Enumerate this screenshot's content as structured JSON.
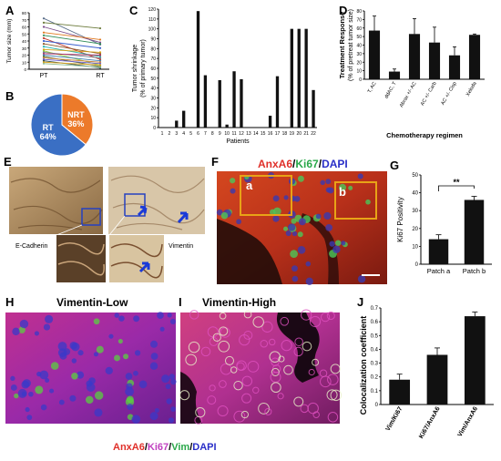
{
  "panel_labels": [
    "A",
    "B",
    "C",
    "D",
    "E",
    "F",
    "G",
    "H",
    "I",
    "J"
  ],
  "colors": {
    "pt": "#c0c0c0",
    "bar": "#111111",
    "pie_rt": "#3a6fc4",
    "pie_nrt": "#ec7a2a",
    "box": "#e8a317",
    "micro_red": "#c8302e",
    "micro_green": "#3cbf4a",
    "micro_blue": "#2a2fc8",
    "ihc_brown": "#a07a48"
  },
  "chart_data": [
    {
      "id": "A",
      "type": "line",
      "ylabel": "Tumor size (mm)",
      "categories": [
        "PT",
        "RT"
      ],
      "ylim": [
        0,
        80
      ],
      "yticks": [
        0,
        10,
        20,
        30,
        40,
        50,
        60,
        70,
        80
      ],
      "series": [
        {
          "values": [
            72,
            35
          ],
          "color": "#5a6e8a"
        },
        {
          "values": [
            66,
            58
          ],
          "color": "#6b7a3a"
        },
        {
          "values": [
            60,
            38
          ],
          "color": "#7a4a8a"
        },
        {
          "values": [
            52,
            42
          ],
          "color": "#e07a20"
        },
        {
          "values": [
            48,
            36
          ],
          "color": "#2e8b57"
        },
        {
          "values": [
            44,
            14
          ],
          "color": "#c0392b"
        },
        {
          "values": [
            40,
            30
          ],
          "color": "#3a5fcd"
        },
        {
          "values": [
            36,
            22
          ],
          "color": "#8b5a2b"
        },
        {
          "values": [
            32,
            18
          ],
          "color": "#20b2aa"
        },
        {
          "values": [
            28,
            24
          ],
          "color": "#d4a017"
        },
        {
          "values": [
            26,
            6
          ],
          "color": "#9acd32"
        },
        {
          "values": [
            24,
            16
          ],
          "color": "#708090"
        },
        {
          "values": [
            22,
            20
          ],
          "color": "#b03060"
        },
        {
          "values": [
            20,
            12
          ],
          "color": "#4682b4"
        },
        {
          "values": [
            18,
            4
          ],
          "color": "#556b2f"
        },
        {
          "values": [
            16,
            10
          ],
          "color": "#cd853f"
        },
        {
          "values": [
            14,
            8
          ],
          "color": "#6a5acd"
        },
        {
          "values": [
            12,
            2
          ],
          "color": "#2f4f4f"
        },
        {
          "values": [
            10,
            6
          ],
          "color": "#daa520"
        },
        {
          "values": [
            8,
            3
          ],
          "color": "#8fbc8f"
        }
      ]
    },
    {
      "id": "B",
      "type": "pie",
      "slices": [
        {
          "label": "RT",
          "value": 64,
          "text": "64%"
        },
        {
          "label": "NRT",
          "value": 36,
          "text": "36%"
        }
      ]
    },
    {
      "id": "C",
      "type": "bar",
      "xlabel": "Patients",
      "ylabel": "Tumor shrinkage\n(% of primary tumor)",
      "ylim": [
        0,
        120
      ],
      "yticks": [
        0,
        10,
        20,
        30,
        40,
        50,
        60,
        70,
        80,
        90,
        100,
        110,
        120
      ],
      "categories": [
        "1",
        "2",
        "3",
        "4",
        "5",
        "6",
        "7",
        "8",
        "9",
        "10",
        "11",
        "12",
        "13",
        "14",
        "15",
        "16",
        "17",
        "18",
        "19",
        "20",
        "21",
        "22"
      ],
      "values": [
        0,
        0,
        7,
        17,
        0,
        118,
        53,
        0,
        48,
        3,
        57,
        49,
        0,
        0,
        0,
        12,
        52,
        0,
        100,
        100,
        100,
        38
      ]
    },
    {
      "id": "D",
      "type": "bar",
      "xlabel": "Chemotherapy regimen",
      "ylabel": "Treatment Response\n(% of pretreat tumor size)",
      "ylim": [
        0,
        80
      ],
      "yticks": [
        0,
        10,
        20,
        30,
        40,
        50,
        60,
        70,
        80
      ],
      "categories": [
        "T, AC",
        "ddAC, T",
        "Abrax +/- AC",
        "AC +/- Carb",
        "AC +/- Cisp",
        "Xeloda"
      ],
      "values": [
        57,
        9,
        53,
        43,
        28,
        52
      ],
      "errors": [
        17,
        3,
        18,
        18,
        10,
        1
      ]
    },
    {
      "id": "G",
      "type": "bar",
      "ylabel": "Ki67 Positivity",
      "ylim": [
        0,
        50
      ],
      "yticks": [
        0,
        10,
        20,
        30,
        40,
        50
      ],
      "categories": [
        "Patch a",
        "Patch b"
      ],
      "values": [
        14,
        36
      ],
      "errors": [
        2.5,
        2
      ],
      "annotation": "**"
    },
    {
      "id": "J",
      "type": "bar",
      "ylabel": "Colocalization coefficient",
      "ylim": [
        0,
        0.7
      ],
      "yticks": [
        "0",
        "0.1",
        "0.2",
        "0.3",
        "0.4",
        "0.5",
        "0.6",
        "0.7"
      ],
      "categories": [
        "Vim/Ki67",
        "Ki67/AnxA6",
        "Vim/AnxA6"
      ],
      "values": [
        0.18,
        0.36,
        0.64
      ],
      "errors": [
        0.04,
        0.05,
        0.03
      ]
    }
  ],
  "panel_e": {
    "left_label": "E-Cadherin",
    "right_label": "Vimentin"
  },
  "panel_f": {
    "title_parts": [
      {
        "text": "AnxA6",
        "color": "#e0302a"
      },
      {
        "text": "/",
        "color": "#000"
      },
      {
        "text": "Ki67",
        "color": "#2aa84a"
      },
      {
        "text": "/",
        "color": "#000"
      },
      {
        "text": "DAPI",
        "color": "#2a2fc8"
      }
    ],
    "box_a": "a",
    "box_b": "b"
  },
  "panel_h": {
    "title": "Vimentin-Low"
  },
  "panel_i": {
    "title": "Vimentin-High"
  },
  "bottom_caption": [
    {
      "text": "AnxA6",
      "color": "#e0302a"
    },
    {
      "text": "/",
      "color": "#000"
    },
    {
      "text": "Ki67",
      "color": "#c040c0"
    },
    {
      "text": "/",
      "color": "#000"
    },
    {
      "text": "Vim",
      "color": "#2aa84a"
    },
    {
      "text": "/",
      "color": "#000"
    },
    {
      "text": "DAPI",
      "color": "#2a2fc8"
    }
  ]
}
